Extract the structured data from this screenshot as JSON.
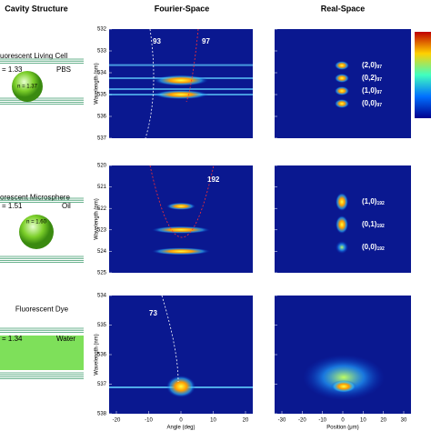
{
  "headers": [
    "Cavity Structure",
    "Fourier-Space",
    "Real-Space"
  ],
  "rows": [
    {
      "title": "uorescent Living Cell",
      "outer": "= 1.33",
      "medium": "PBS",
      "inner": "n = 1.37",
      "ylabel": "Wavelength (nm)",
      "yticks": [
        532,
        533,
        534,
        535,
        536,
        537
      ],
      "fourier_labels": [
        "93",
        "97"
      ],
      "modes": [
        {
          "label": "(2,0)",
          "sub": "97"
        },
        {
          "label": "(0,2)",
          "sub": "97"
        },
        {
          "label": "(1,0)",
          "sub": "97"
        },
        {
          "label": "(0,0)",
          "sub": "97"
        }
      ]
    },
    {
      "title": "orescent Microsphere",
      "outer": "= 1.51",
      "medium": "Oil",
      "inner": "n = 1.60",
      "ylabel": "Wavelength (nm)",
      "yticks": [
        520,
        521,
        522,
        523,
        524,
        525
      ],
      "fourier_labels": [
        "192"
      ],
      "modes": [
        {
          "label": "(1,0)",
          "sub": "192"
        },
        {
          "label": "(0,1)",
          "sub": "192"
        },
        {
          "label": "(0,0)",
          "sub": "192"
        }
      ]
    },
    {
      "title": "Fluorescent Dye",
      "outer": "= 1.34",
      "medium": "Water",
      "ylabel": "Wavelength (nm)",
      "yticks": [
        534,
        535,
        536,
        537,
        538
      ],
      "fourier_labels": [
        "73"
      ],
      "modes": []
    }
  ],
  "xaxis": {
    "angle_ticks": [
      -20,
      -10,
      0,
      10,
      20
    ],
    "angle_label": "Angle (deg)",
    "position_ticks": [
      -30,
      -20,
      -10,
      0,
      10,
      20,
      30
    ],
    "position_label": "Position (μm)"
  }
}
